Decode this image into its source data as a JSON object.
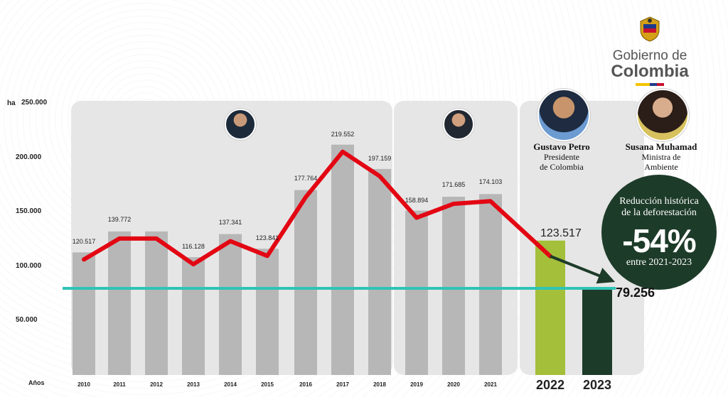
{
  "logo": {
    "line1": "Gobierno de",
    "line2": "Colombia"
  },
  "people": [
    {
      "name": "Gustavo Petro",
      "role1": "Presidente",
      "role2": "de Colombia"
    },
    {
      "name": "Susana Muhamad",
      "role1": "Ministra de",
      "role2": "Ambiente"
    }
  ],
  "badge": {
    "line1": "Reducción histórica",
    "line2": "de la deforestación",
    "pct": "-54%",
    "line3": "entre 2021-2023"
  },
  "colors": {
    "bar_gray": "#b7b7b7",
    "bar_2022": "#a4bf3a",
    "bar_2023": "#1d3b29",
    "line_red": "#e30613",
    "ref_line": "#2ec4b6",
    "panel": "#e6e6e6"
  },
  "chart_data": {
    "type": "bar",
    "ylabel": "ha",
    "xlabel": "Años",
    "ylim": [
      0,
      250000
    ],
    "yticks": [
      "250.000",
      "200.000",
      "150.000",
      "100.000",
      "50.000"
    ],
    "categories": [
      "2010",
      "2011",
      "2012",
      "2013",
      "2014",
      "2015",
      "2016",
      "2017",
      "2018",
      "2019",
      "2020",
      "2021",
      "2022",
      "2023"
    ],
    "values": [
      120517,
      139772,
      139772,
      116128,
      137341,
      123841,
      177764,
      219552,
      197159,
      158894,
      171685,
      174103,
      123517,
      79256
    ],
    "labels": [
      "120.517",
      "139.772",
      "",
      "116.128",
      "137.341",
      "123.841",
      "177.764",
      "219.552",
      "197.159",
      "158.894",
      "171.685",
      "174.103",
      "123.517",
      "79.256"
    ],
    "grid": false,
    "reference_line": 79256
  }
}
